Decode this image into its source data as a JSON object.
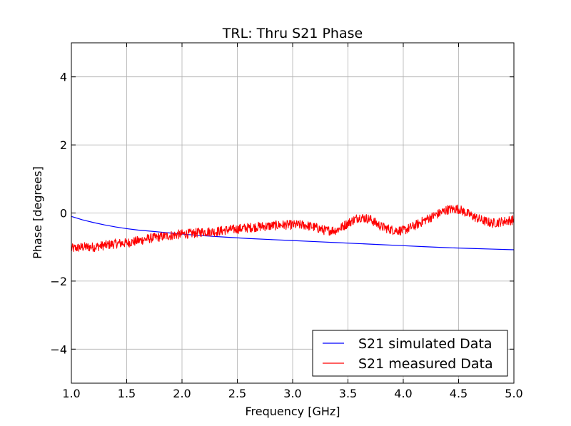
{
  "chart_data": {
    "type": "line",
    "title": "TRL: Thru S21 Phase",
    "xlabel": "Frequency [GHz]",
    "ylabel": "Phase [degrees]",
    "xlim": [
      1.0,
      5.0
    ],
    "ylim": [
      -5,
      5
    ],
    "xticks": [
      1.0,
      1.5,
      2.0,
      2.5,
      3.0,
      3.5,
      4.0,
      4.5,
      5.0
    ],
    "xtick_labels": [
      "1.0",
      "1.5",
      "2.0",
      "2.5",
      "3.0",
      "3.5",
      "4.0",
      "4.5",
      "5.0"
    ],
    "yticks": [
      -4,
      -2,
      0,
      2,
      4
    ],
    "ytick_labels": [
      "−4",
      "−2",
      "0",
      "2",
      "4"
    ],
    "grid": true,
    "legend_position": "lower-right",
    "series": [
      {
        "name": "S21 simulated Data",
        "color": "#0000ff",
        "x": [
          1.0,
          1.1,
          1.2,
          1.3,
          1.4,
          1.5,
          1.6,
          1.7,
          1.8,
          1.9,
          2.0,
          2.2,
          2.4,
          2.6,
          2.8,
          3.0,
          3.2,
          3.4,
          3.6,
          3.8,
          4.0,
          4.2,
          4.4,
          4.6,
          4.8,
          5.0
        ],
        "y": [
          -0.1,
          -0.2,
          -0.28,
          -0.35,
          -0.41,
          -0.46,
          -0.5,
          -0.53,
          -0.56,
          -0.59,
          -0.62,
          -0.67,
          -0.71,
          -0.75,
          -0.78,
          -0.81,
          -0.84,
          -0.87,
          -0.9,
          -0.93,
          -0.96,
          -0.99,
          -1.02,
          -1.04,
          -1.06,
          -1.08
        ]
      },
      {
        "name": "S21 measured Data",
        "color": "#ff0000",
        "x": [
          1.0,
          1.1,
          1.2,
          1.3,
          1.4,
          1.5,
          1.6,
          1.7,
          1.8,
          1.9,
          2.0,
          2.1,
          2.2,
          2.3,
          2.4,
          2.5,
          2.6,
          2.7,
          2.8,
          2.9,
          3.0,
          3.1,
          3.2,
          3.3,
          3.4,
          3.5,
          3.6,
          3.7,
          3.8,
          3.9,
          4.0,
          4.1,
          4.2,
          4.3,
          4.4,
          4.5,
          4.6,
          4.7,
          4.8,
          4.9,
          5.0
        ],
        "y": [
          -1.05,
          -1.0,
          -1.0,
          -0.95,
          -0.9,
          -0.88,
          -0.82,
          -0.75,
          -0.7,
          -0.66,
          -0.62,
          -0.6,
          -0.55,
          -0.55,
          -0.5,
          -0.47,
          -0.43,
          -0.4,
          -0.38,
          -0.35,
          -0.35,
          -0.35,
          -0.42,
          -0.52,
          -0.5,
          -0.3,
          -0.12,
          -0.18,
          -0.4,
          -0.5,
          -0.52,
          -0.38,
          -0.2,
          -0.05,
          0.1,
          0.12,
          -0.05,
          -0.2,
          -0.3,
          -0.25,
          -0.2
        ]
      }
    ]
  }
}
